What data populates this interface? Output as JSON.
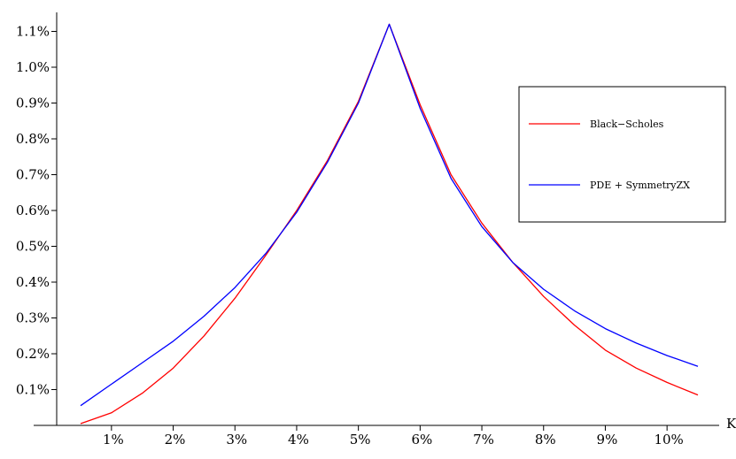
{
  "chart_data": {
    "type": "line",
    "title": "",
    "xlabel": "K",
    "ylabel": "",
    "xlim": [
      0.0,
      11.0
    ],
    "ylim": [
      -0.001,
      1.15
    ],
    "x_ticks": [
      1,
      2,
      3,
      4,
      5,
      6,
      7,
      8,
      9,
      10
    ],
    "x_tick_labels": [
      "1%",
      "2%",
      "3%",
      "4%",
      "5%",
      "6%",
      "7%",
      "8%",
      "9%",
      "10%"
    ],
    "y_ticks": [
      0.1,
      0.2,
      0.3,
      0.4,
      0.5,
      0.6,
      0.7,
      0.8,
      0.9,
      1.0,
      1.1
    ],
    "y_tick_labels": [
      "0.1%",
      "0.2%",
      "0.3%",
      "0.4%",
      "0.5%",
      "0.6%",
      "0.7%",
      "0.8%",
      "0.9%",
      "1.0%",
      "1.1%"
    ],
    "grid": false,
    "legend_position": "right",
    "x": [
      0.5,
      1.0,
      1.5,
      2.0,
      2.5,
      3.0,
      3.5,
      4.0,
      4.5,
      5.0,
      5.5,
      6.0,
      6.5,
      7.0,
      7.5,
      8.0,
      8.5,
      9.0,
      9.5,
      10.0,
      10.5
    ],
    "series": [
      {
        "name": "Black−Scholes",
        "color": "#ff0000",
        "values": [
          0.005,
          0.035,
          0.09,
          0.16,
          0.25,
          0.355,
          0.475,
          0.6,
          0.74,
          0.905,
          1.12,
          0.895,
          0.7,
          0.565,
          0.455,
          0.36,
          0.28,
          0.21,
          0.16,
          0.12,
          0.085
        ]
      },
      {
        "name": "PDE + SymmetryZX",
        "color": "#0000ff",
        "values": [
          0.055,
          0.115,
          0.175,
          0.235,
          0.305,
          0.385,
          0.48,
          0.595,
          0.735,
          0.9,
          1.12,
          0.885,
          0.69,
          0.555,
          0.455,
          0.38,
          0.32,
          0.27,
          0.23,
          0.195,
          0.165
        ]
      }
    ]
  }
}
